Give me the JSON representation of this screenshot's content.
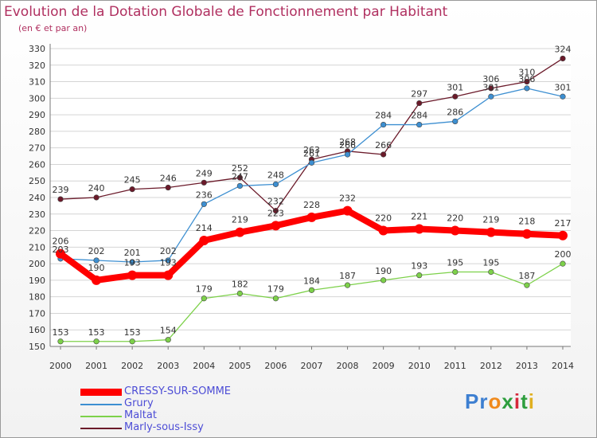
{
  "header": {
    "title": "Evolution de la Dotation Globale de Fonctionnement par Habitant",
    "subtitle": "(en € et par an)"
  },
  "brand": {
    "logo_text": "Proxiti"
  },
  "chart_data": {
    "type": "line",
    "title": "Evolution de la Dotation Globale de Fonctionnement par Habitant",
    "subtitle": "(en € et par an)",
    "xlabel": "",
    "ylabel": "",
    "ylim": [
      150,
      330
    ],
    "ytick_step": 10,
    "x": [
      2000,
      2001,
      2002,
      2003,
      2004,
      2005,
      2006,
      2007,
      2008,
      2009,
      2010,
      2011,
      2012,
      2013,
      2014
    ],
    "grid": "horizontal",
    "legend_position": "bottom-left",
    "series": [
      {
        "name": "CRESSY-SUR-SOMME",
        "color": "#ff0000",
        "values": [
          206,
          190,
          193,
          193,
          214,
          219,
          223,
          228,
          232,
          220,
          221,
          220,
          219,
          218,
          217
        ]
      },
      {
        "name": "Grury",
        "color": "#3d8fd1",
        "values": [
          203,
          202,
          201,
          202,
          236,
          247,
          248,
          261,
          266,
          284,
          284,
          286,
          301,
          306,
          301
        ]
      },
      {
        "name": "Maltat",
        "color": "#7dd14a",
        "values": [
          153,
          153,
          153,
          154,
          179,
          182,
          179,
          184,
          187,
          190,
          193,
          195,
          195,
          187,
          200
        ]
      },
      {
        "name": "Marly-sous-Issy",
        "color": "#6b1a2a",
        "values": [
          239,
          240,
          245,
          246,
          249,
          252,
          232,
          263,
          268,
          266,
          297,
          301,
          306,
          310,
          324
        ]
      }
    ]
  }
}
